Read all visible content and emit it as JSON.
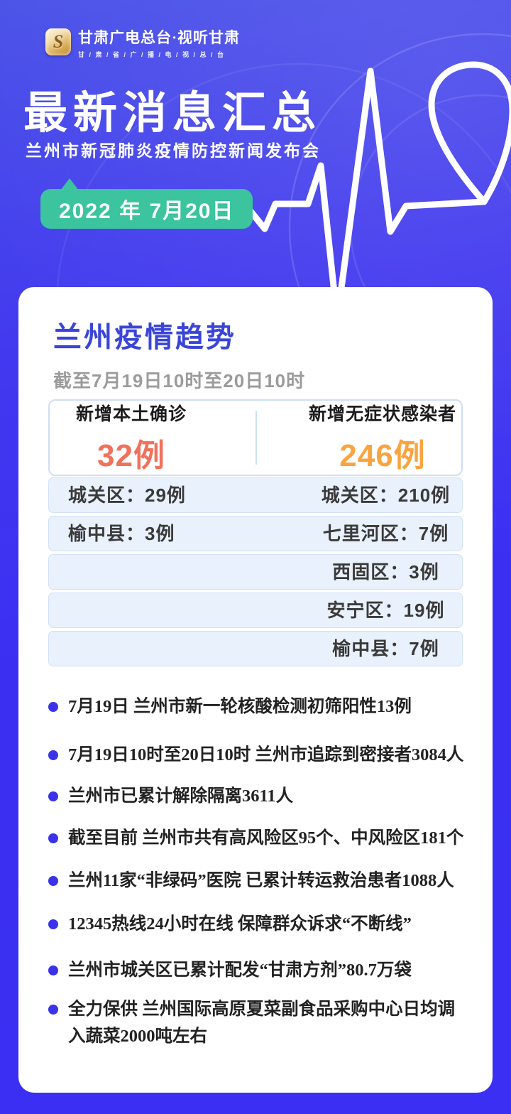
{
  "brand": {
    "logo_letter": "S",
    "name": "甘肃广电总台·视听甘肃",
    "sub": "甘 / 肃 / 省 / 广 / 播 / 电 / 视 / 总 / 台"
  },
  "header": {
    "title": "最新消息汇总",
    "subtitle": "兰州市新冠肺炎疫情防控新闻发布会",
    "date_badge": "2022 年 7月20日"
  },
  "card": {
    "title": "兰州疫情趋势",
    "period": "截至7月19日10时至20日10时",
    "summary": {
      "left": {
        "label": "新增本土确诊",
        "value": "32例",
        "color": "#f0715c"
      },
      "right": {
        "label": "新增无症状感染者",
        "value": "246例",
        "color": "#f9a441"
      }
    },
    "rows": [
      {
        "left": "城关区：29例",
        "right": "城关区：210例"
      },
      {
        "left": "榆中县：3例",
        "right": "七里河区：7例"
      },
      {
        "left": "",
        "right": "西固区：3例"
      },
      {
        "left": "",
        "right": "安宁区：19例"
      },
      {
        "left": "",
        "right": "榆中县：7例"
      }
    ],
    "bullets": [
      "7月19日 兰州市新一轮核酸检测初筛阳性13例",
      "7月19日10时至20日10时 兰州市追踪到密接者3084人",
      "兰州市已累计解除隔离3611人",
      "截至目前 兰州市共有高风险区95个、中风险区181个",
      "兰州11家“非绿码”医院 已累计转运救治患者1088人",
      "12345热线24小时在线 保障群众诉求“不断线”",
      "兰州市城关区已累计配发“甘肃方剂”80.7万袋",
      "全力保供 兰州国际高原夏菜副食品采购中心日均调入蔬菜2000吨左右"
    ]
  },
  "colors": {
    "background_top": "#4b53e8",
    "background_bottom": "#3a2ff2",
    "badge_green": "#3bc49d",
    "card_title_blue": "#3a45d8",
    "bullet_dot_blue": "#3a33ea",
    "confirmed_red": "#f0715c",
    "asymptomatic_orange": "#f9a441",
    "row_fill": "#e9f1fc",
    "table_border": "#cfdef5"
  }
}
